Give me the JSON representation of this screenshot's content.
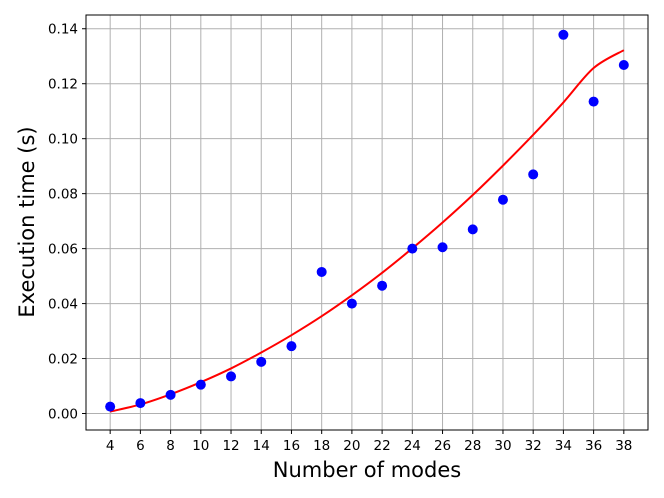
{
  "chart_data": {
    "type": "scatter",
    "title": "",
    "xlabel": "Number of modes",
    "ylabel": "Execution time (s)",
    "x_ticks": [
      "4",
      "6",
      "8",
      "10",
      "12",
      "14",
      "16",
      "18",
      "20",
      "22",
      "24",
      "26",
      "28",
      "30",
      "32",
      "34",
      "36",
      "38"
    ],
    "y_ticks": [
      "0.00",
      "0.02",
      "0.04",
      "0.06",
      "0.08",
      "0.10",
      "0.12",
      "0.14"
    ],
    "xlim": [
      2.4,
      39.6
    ],
    "ylim": [
      -0.006,
      0.145
    ],
    "grid": true,
    "series": [
      {
        "kind": "points",
        "color": "#0000ff",
        "marker": "circle",
        "x": [
          4,
          6,
          8,
          10,
          12,
          14,
          16,
          18,
          20,
          22,
          24,
          26,
          28,
          30,
          32,
          34,
          36,
          38
        ],
        "y": [
          0.0025,
          0.0038,
          0.0068,
          0.0105,
          0.0135,
          0.0188,
          0.0245,
          0.0515,
          0.04,
          0.0465,
          0.06,
          0.0605,
          0.067,
          0.0778,
          0.087,
          0.1378,
          0.1135,
          0.1268
        ]
      },
      {
        "kind": "fit-curve",
        "color": "#ff0000",
        "x": [
          4,
          6,
          8,
          10,
          12,
          14,
          16,
          18,
          20,
          22,
          24,
          26,
          28,
          30,
          32,
          34,
          36,
          38
        ],
        "y": [
          0.0007,
          0.0033,
          0.007,
          0.0114,
          0.0164,
          0.0222,
          0.0285,
          0.0354,
          0.043,
          0.0512,
          0.0601,
          0.0695,
          0.0795,
          0.0902,
          0.1014,
          0.1132,
          0.1257,
          0.1322
        ]
      }
    ]
  }
}
